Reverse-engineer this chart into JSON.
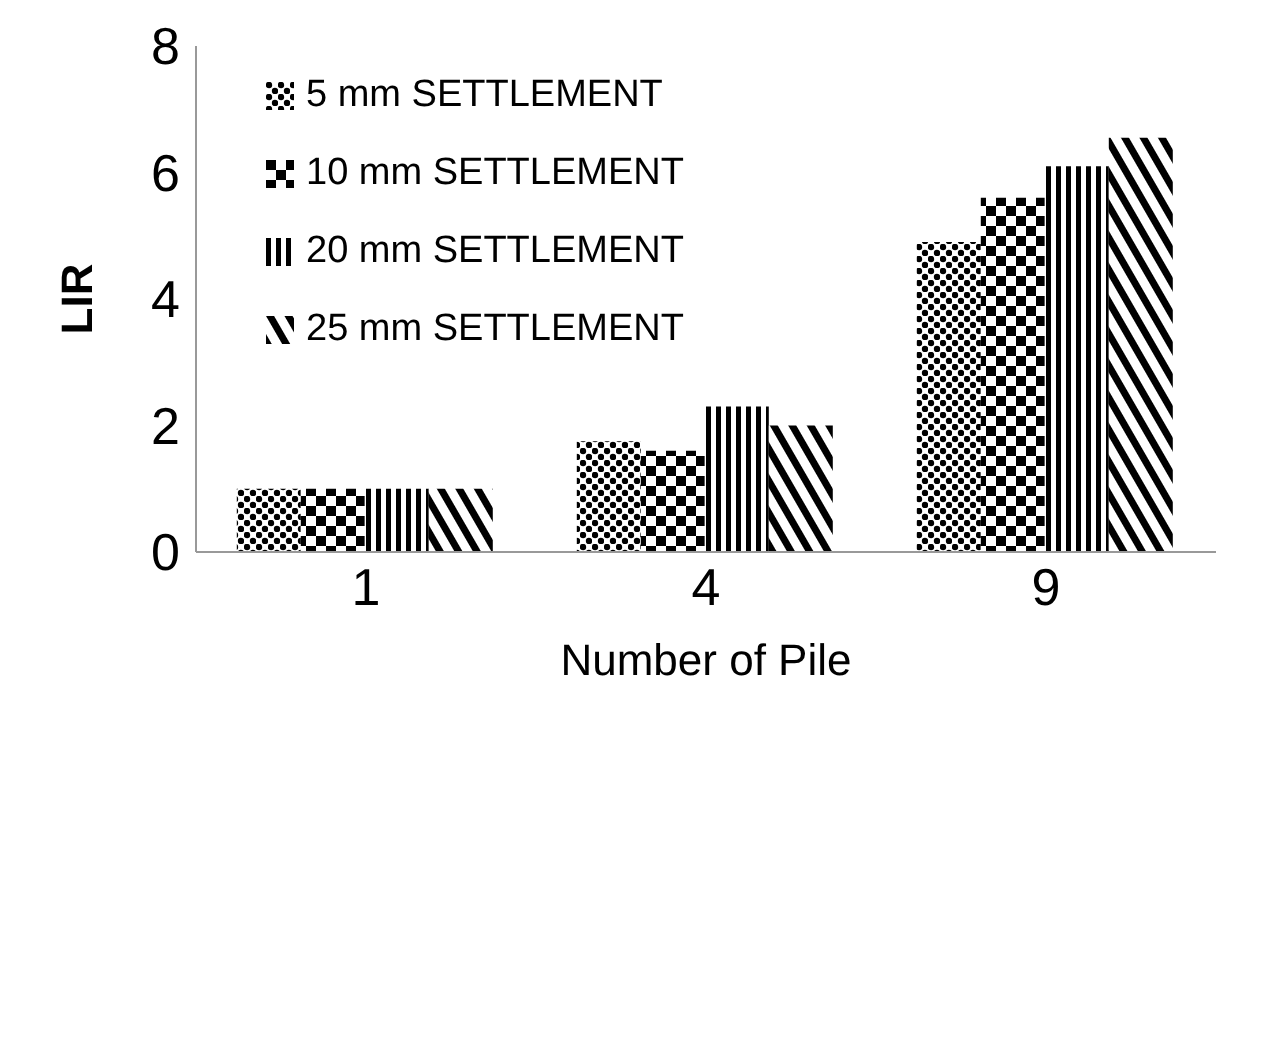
{
  "chart_data": {
    "type": "bar",
    "xlabel": "Number of Pile",
    "ylabel": "LIR",
    "categories": [
      "1",
      "4",
      "9"
    ],
    "series": [
      {
        "name": "5 mm SETTLEMENT",
        "color": "#000000",
        "values": [
          1.0,
          1.75,
          4.9
        ]
      },
      {
        "name": "10 mm SETTLEMENT",
        "color": "#000000",
        "values": [
          1.0,
          1.6,
          5.6
        ]
      },
      {
        "name": "20 mm SETTLEMENT",
        "color": "#000000",
        "values": [
          1.0,
          2.3,
          6.1
        ]
      },
      {
        "name": "25 mm SETTLEMENT",
        "color": "#000000",
        "values": [
          1.0,
          2.0,
          6.55
        ]
      }
    ],
    "ylim": [
      0,
      8
    ],
    "yticks": [
      0,
      2,
      4,
      6,
      8
    ],
    "grid": false,
    "legend": "top left"
  }
}
